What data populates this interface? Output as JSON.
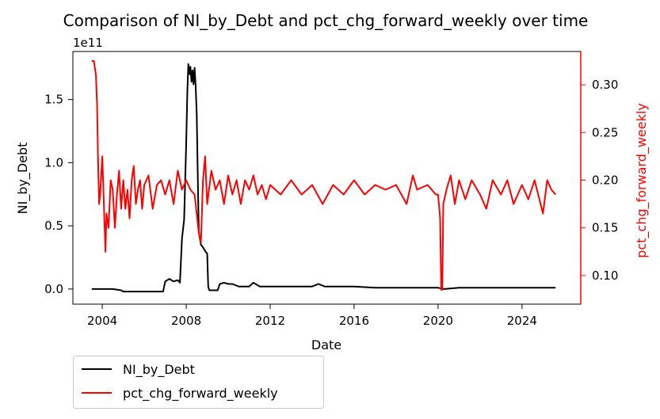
{
  "chart_data": {
    "type": "line",
    "title": "Comparison of NI_by_Debt and pct_chg_forward_weekly over time",
    "xlabel": "Date",
    "x_ticks": [
      "2004",
      "2008",
      "2012",
      "2016",
      "2020",
      "2024"
    ],
    "xlim": [
      2002.6,
      2026.8
    ],
    "left_axis": {
      "label": "NI_by_Debt",
      "offset_text": "1e11",
      "ticks": [
        "0.0",
        "0.5",
        "1.0",
        "1.5"
      ],
      "ylim": [
        -0.12,
        1.88
      ],
      "color": "#000000"
    },
    "right_axis": {
      "label": "pct_chg_forward_weekly",
      "ticks": [
        "0.10",
        "0.15",
        "0.20",
        "0.25",
        "0.30"
      ],
      "ylim": [
        0.07,
        0.335
      ],
      "color": "#ff0000"
    },
    "legend_position": "below-left",
    "series": [
      {
        "name": "NI_by_Debt",
        "axis": "left",
        "color": "#000000",
        "points": [
          [
            2003.5,
            0.0
          ],
          [
            2004.0,
            0.0
          ],
          [
            2004.5,
            0.0
          ],
          [
            2004.9,
            -0.01
          ],
          [
            2005.0,
            -0.02
          ],
          [
            2005.5,
            -0.02
          ],
          [
            2006.0,
            -0.02
          ],
          [
            2006.5,
            -0.02
          ],
          [
            2006.9,
            -0.02
          ],
          [
            2007.0,
            0.06
          ],
          [
            2007.2,
            0.08
          ],
          [
            2007.4,
            0.06
          ],
          [
            2007.6,
            0.07
          ],
          [
            2007.7,
            0.05
          ],
          [
            2007.8,
            0.4
          ],
          [
            2007.9,
            0.55
          ],
          [
            2008.0,
            1.15
          ],
          [
            2008.05,
            1.55
          ],
          [
            2008.1,
            1.78
          ],
          [
            2008.15,
            1.7
          ],
          [
            2008.2,
            1.76
          ],
          [
            2008.25,
            1.64
          ],
          [
            2008.3,
            1.73
          ],
          [
            2008.35,
            1.62
          ],
          [
            2008.4,
            1.75
          ],
          [
            2008.45,
            1.6
          ],
          [
            2008.5,
            1.38
          ],
          [
            2008.55,
            0.9
          ],
          [
            2008.6,
            0.45
          ],
          [
            2008.7,
            0.35
          ],
          [
            2008.8,
            0.33
          ],
          [
            2008.9,
            0.3
          ],
          [
            2009.0,
            0.28
          ],
          [
            2009.05,
            0.02
          ],
          [
            2009.1,
            -0.01
          ],
          [
            2009.3,
            -0.01
          ],
          [
            2009.5,
            -0.01
          ],
          [
            2009.6,
            0.04
          ],
          [
            2009.8,
            0.05
          ],
          [
            2010.0,
            0.04
          ],
          [
            2010.2,
            0.04
          ],
          [
            2010.5,
            0.02
          ],
          [
            2011.0,
            0.02
          ],
          [
            2011.2,
            0.05
          ],
          [
            2011.5,
            0.02
          ],
          [
            2012.0,
            0.02
          ],
          [
            2013.0,
            0.02
          ],
          [
            2014.0,
            0.02
          ],
          [
            2014.3,
            0.04
          ],
          [
            2014.6,
            0.02
          ],
          [
            2015.0,
            0.02
          ],
          [
            2016.0,
            0.02
          ],
          [
            2017.0,
            0.01
          ],
          [
            2018.0,
            0.01
          ],
          [
            2019.0,
            0.01
          ],
          [
            2020.0,
            0.01
          ],
          [
            2020.3,
            0.0
          ],
          [
            2021.0,
            0.01
          ],
          [
            2022.0,
            0.01
          ],
          [
            2023.0,
            0.01
          ],
          [
            2024.0,
            0.01
          ],
          [
            2025.0,
            0.01
          ],
          [
            2025.6,
            0.01
          ]
        ]
      },
      {
        "name": "pct_chg_forward_weekly",
        "axis": "right",
        "color": "#ff0000",
        "points": [
          [
            2003.5,
            0.325
          ],
          [
            2003.6,
            0.325
          ],
          [
            2003.7,
            0.31
          ],
          [
            2003.75,
            0.28
          ],
          [
            2003.8,
            0.22
          ],
          [
            2003.85,
            0.175
          ],
          [
            2003.9,
            0.185
          ],
          [
            2004.0,
            0.225
          ],
          [
            2004.1,
            0.16
          ],
          [
            2004.15,
            0.125
          ],
          [
            2004.2,
            0.165
          ],
          [
            2004.3,
            0.15
          ],
          [
            2004.4,
            0.2
          ],
          [
            2004.5,
            0.19
          ],
          [
            2004.6,
            0.15
          ],
          [
            2004.7,
            0.185
          ],
          [
            2004.8,
            0.21
          ],
          [
            2004.9,
            0.17
          ],
          [
            2005.0,
            0.2
          ],
          [
            2005.1,
            0.17
          ],
          [
            2005.2,
            0.19
          ],
          [
            2005.3,
            0.16
          ],
          [
            2005.4,
            0.2
          ],
          [
            2005.5,
            0.215
          ],
          [
            2005.6,
            0.175
          ],
          [
            2005.7,
            0.19
          ],
          [
            2005.8,
            0.2
          ],
          [
            2005.9,
            0.17
          ],
          [
            2006.0,
            0.195
          ],
          [
            2006.2,
            0.205
          ],
          [
            2006.4,
            0.17
          ],
          [
            2006.6,
            0.195
          ],
          [
            2006.8,
            0.2
          ],
          [
            2007.0,
            0.185
          ],
          [
            2007.2,
            0.2
          ],
          [
            2007.4,
            0.175
          ],
          [
            2007.6,
            0.21
          ],
          [
            2007.8,
            0.19
          ],
          [
            2008.0,
            0.2
          ],
          [
            2008.2,
            0.19
          ],
          [
            2008.4,
            0.185
          ],
          [
            2008.6,
            0.145
          ],
          [
            2008.7,
            0.135
          ],
          [
            2008.8,
            0.2
          ],
          [
            2008.9,
            0.225
          ],
          [
            2009.0,
            0.175
          ],
          [
            2009.2,
            0.21
          ],
          [
            2009.4,
            0.19
          ],
          [
            2009.6,
            0.2
          ],
          [
            2009.8,
            0.175
          ],
          [
            2010.0,
            0.205
          ],
          [
            2010.2,
            0.185
          ],
          [
            2010.4,
            0.2
          ],
          [
            2010.6,
            0.175
          ],
          [
            2010.8,
            0.2
          ],
          [
            2011.0,
            0.19
          ],
          [
            2011.2,
            0.205
          ],
          [
            2011.4,
            0.185
          ],
          [
            2011.6,
            0.195
          ],
          [
            2011.8,
            0.18
          ],
          [
            2012.0,
            0.195
          ],
          [
            2012.5,
            0.185
          ],
          [
            2013.0,
            0.2
          ],
          [
            2013.5,
            0.185
          ],
          [
            2014.0,
            0.195
          ],
          [
            2014.5,
            0.175
          ],
          [
            2015.0,
            0.195
          ],
          [
            2015.5,
            0.185
          ],
          [
            2016.0,
            0.2
          ],
          [
            2016.5,
            0.185
          ],
          [
            2017.0,
            0.195
          ],
          [
            2017.5,
            0.19
          ],
          [
            2018.0,
            0.195
          ],
          [
            2018.5,
            0.175
          ],
          [
            2018.8,
            0.205
          ],
          [
            2019.0,
            0.19
          ],
          [
            2019.5,
            0.195
          ],
          [
            2019.9,
            0.185
          ],
          [
            2020.0,
            0.185
          ],
          [
            2020.1,
            0.16
          ],
          [
            2020.15,
            0.085
          ],
          [
            2020.2,
            0.085
          ],
          [
            2020.25,
            0.175
          ],
          [
            2020.4,
            0.19
          ],
          [
            2020.6,
            0.205
          ],
          [
            2020.8,
            0.175
          ],
          [
            2021.0,
            0.2
          ],
          [
            2021.3,
            0.18
          ],
          [
            2021.6,
            0.2
          ],
          [
            2022.0,
            0.185
          ],
          [
            2022.3,
            0.17
          ],
          [
            2022.6,
            0.2
          ],
          [
            2023.0,
            0.185
          ],
          [
            2023.3,
            0.2
          ],
          [
            2023.6,
            0.175
          ],
          [
            2024.0,
            0.195
          ],
          [
            2024.3,
            0.18
          ],
          [
            2024.6,
            0.2
          ],
          [
            2025.0,
            0.165
          ],
          [
            2025.2,
            0.2
          ],
          [
            2025.4,
            0.19
          ],
          [
            2025.6,
            0.185
          ]
        ]
      }
    ]
  }
}
